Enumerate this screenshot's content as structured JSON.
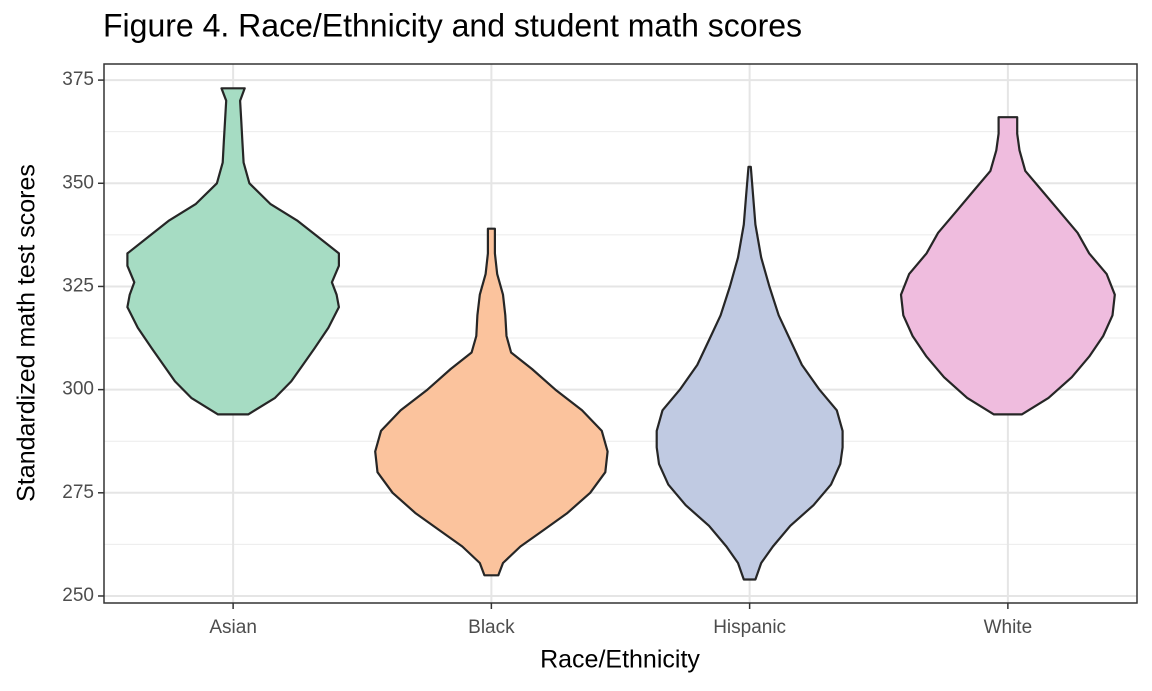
{
  "chart_data": {
    "type": "violin",
    "title": "Figure 4. Race/Ethnicity and student math scores",
    "x_label": "Race/Ethnicity",
    "y_label": "Standardized math test scores",
    "categories": [
      "Asian",
      "Black",
      "Hispanic",
      "White"
    ],
    "ylim": [
      248.3,
      378.9
    ],
    "yticks": [
      250,
      275,
      300,
      325,
      350,
      375
    ],
    "yminorticks": [
      262.5,
      287.5,
      312.5,
      337.5,
      362.5
    ],
    "grid": true,
    "series": [
      {
        "name": "Asian",
        "color": "#a6dcc3",
        "y": [
          294,
          298,
          302,
          306,
          310,
          315,
          320,
          323,
          326,
          330,
          333,
          337,
          341,
          345,
          350,
          355,
          360,
          365,
          370,
          373
        ],
        "density": [
          0.13,
          0.36,
          0.5,
          0.6,
          0.7,
          0.82,
          0.91,
          0.89,
          0.85,
          0.91,
          0.91,
          0.73,
          0.55,
          0.32,
          0.14,
          0.09,
          0.08,
          0.07,
          0.06,
          0.1
        ]
      },
      {
        "name": "Black",
        "color": "#fbc39d",
        "y": [
          255,
          258,
          262,
          266,
          270,
          275,
          280,
          285,
          290,
          295,
          300,
          305,
          309,
          313,
          318,
          323,
          328,
          333,
          339
        ],
        "density": [
          0.06,
          0.1,
          0.25,
          0.45,
          0.65,
          0.85,
          0.98,
          1.0,
          0.95,
          0.78,
          0.55,
          0.35,
          0.17,
          0.13,
          0.12,
          0.1,
          0.05,
          0.03,
          0.03
        ]
      },
      {
        "name": "Hispanic",
        "color": "#c0cae2",
        "y": [
          254,
          258,
          262,
          267,
          272,
          277,
          282,
          286,
          290,
          295,
          300,
          306,
          312,
          318,
          325,
          332,
          340,
          347,
          354
        ],
        "density": [
          0.05,
          0.1,
          0.2,
          0.35,
          0.55,
          0.7,
          0.78,
          0.8,
          0.8,
          0.75,
          0.6,
          0.45,
          0.35,
          0.25,
          0.17,
          0.1,
          0.05,
          0.03,
          0.01
        ]
      },
      {
        "name": "White",
        "color": "#efbcde",
        "y": [
          294,
          298,
          303,
          308,
          313,
          318,
          323,
          328,
          333,
          338,
          343,
          348,
          353,
          358,
          362,
          366
        ],
        "density": [
          0.12,
          0.35,
          0.55,
          0.7,
          0.82,
          0.9,
          0.92,
          0.85,
          0.7,
          0.6,
          0.45,
          0.3,
          0.15,
          0.1,
          0.08,
          0.08
        ]
      }
    ]
  }
}
